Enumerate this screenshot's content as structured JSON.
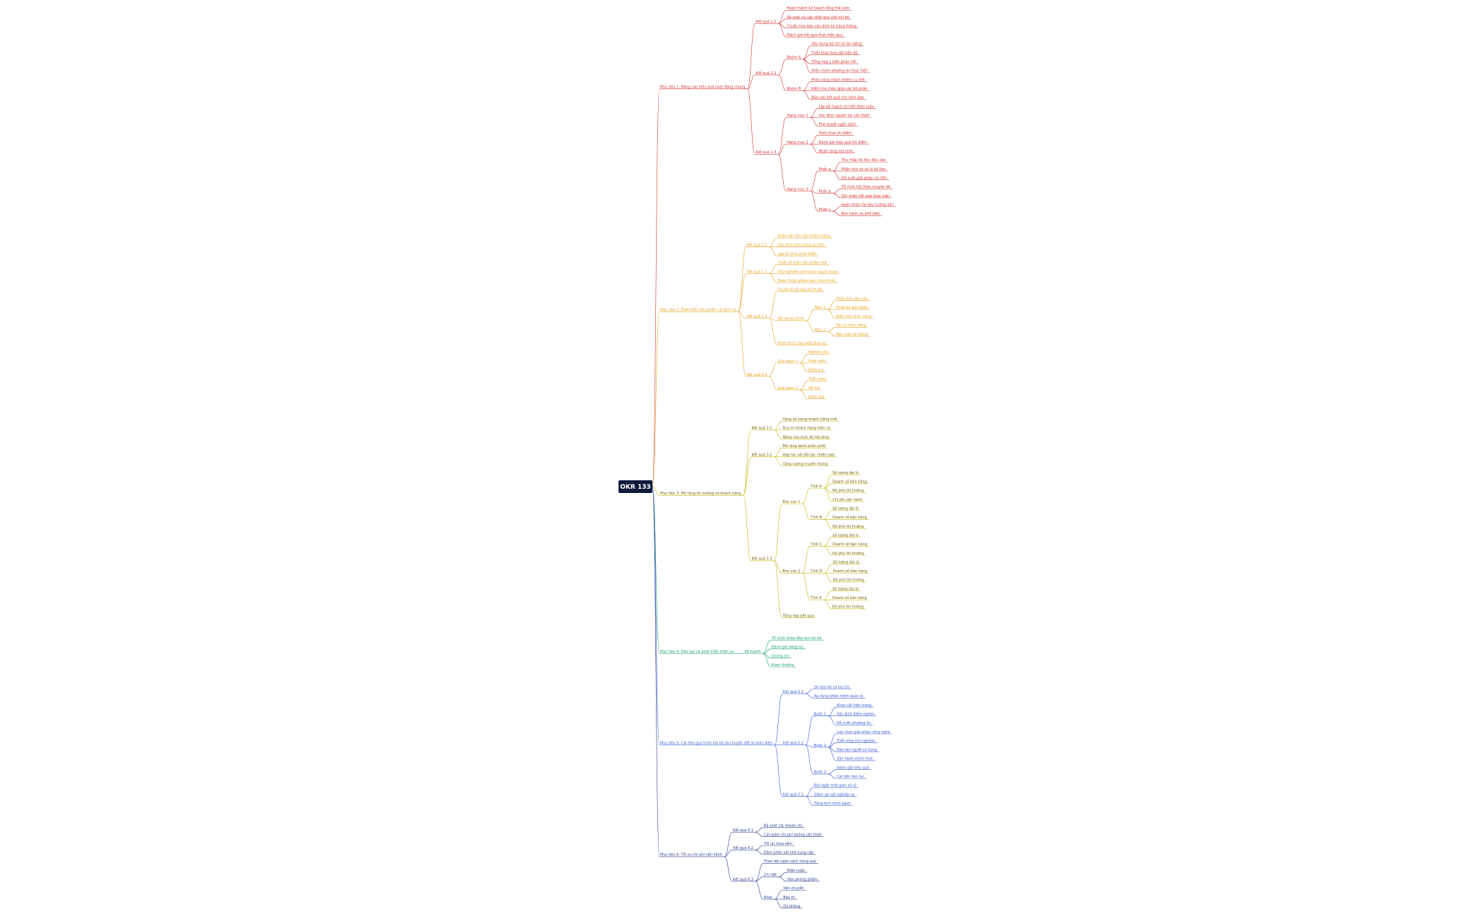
{
  "root": {
    "label": "OKR 133"
  },
  "branches": [
    {
      "label": "Mục tiêu 1: Nâng cao hiệu quả hoạt động chung",
      "color": "#d0312d",
      "children": [
        {
          "label": "Kết quả 1.1",
          "children": [
            {
              "label": "Hoàn thành kế hoạch tổng thể năm"
            },
            {
              "label": "Rà soát và cập nhật quy chế nội bộ"
            },
            {
              "label": "Chuẩn hóa báo cáo định kỳ hàng tháng"
            },
            {
              "label": "Đánh giá kết quả thực hiện quý"
            }
          ]
        },
        {
          "label": "Kết quả 1.2",
          "children": [
            {
              "label": "Nhóm A",
              "children": [
                {
                  "label": "Xây dựng bộ chỉ số đo lường"
                },
                {
                  "label": "Triển khai theo dõi tiến độ"
                },
                {
                  "label": "Tổng hợp ý kiến phản hồi"
                },
                {
                  "label": "Điều chỉnh phương án thực hiện"
                }
              ]
            },
            {
              "label": "Nhóm B",
              "children": [
                {
                  "label": "Phân công trách nhiệm cụ thể"
                },
                {
                  "label": "Kiểm tra chéo giữa các bộ phận"
                },
                {
                  "label": "Báo cáo kết quả cho lãnh đạo"
                }
              ]
            }
          ]
        },
        {
          "label": "Kết quả 1.3",
          "children": [
            {
              "label": "Hạng mục 1",
              "children": [
                {
                  "label": "Lập kế hoạch chi tiết theo tuần"
                },
                {
                  "label": "Xác định nguồn lực cần thiết"
                },
                {
                  "label": "Phê duyệt ngân sách"
                }
              ]
            },
            {
              "label": "Hạng mục 2",
              "children": [
                {
                  "label": "Triển khai thí điểm"
                },
                {
                  "label": "Đánh giá hiệu quả thí điểm"
                },
                {
                  "label": "Nhân rộng mô hình"
                }
              ]
            },
            {
              "label": "Hạng mục 3",
              "children": [
                {
                  "label": "Phần a",
                  "children": [
                    {
                      "label": "Thu thập dữ liệu đầu vào"
                    },
                    {
                      "label": "Phân tích và xử lý số liệu"
                    },
                    {
                      "label": "Đề xuất giải pháp cải tiến"
                    }
                  ]
                },
                {
                  "label": "Phần b",
                  "children": [
                    {
                      "label": "Tổ chức hội thảo chuyên đề"
                    },
                    {
                      "label": "Ghi nhận kết quả thảo luận"
                    }
                  ]
                },
                {
                  "label": "Phần c",
                  "children": [
                    {
                      "label": "Hoàn thiện tài liệu hướng dẫn"
                    },
                    {
                      "label": "Ban hành và phổ biến"
                    }
                  ]
                }
              ]
            }
          ]
        }
      ]
    },
    {
      "label": "Mục tiêu 2: Phát triển sản phẩm và dịch vụ",
      "color": "#e8a11a",
      "children": [
        {
          "label": "Kết quả 2.1",
          "children": [
            {
              "label": "Khảo sát nhu cầu khách hàng"
            },
            {
              "label": "Xác định tính năng ưu tiên"
            },
            {
              "label": "Lập lộ trình phát triển"
            }
          ]
        },
        {
          "label": "Kết quả 2.2",
          "children": [
            {
              "label": "Thiết kế mẫu sản phẩm mới"
            },
            {
              "label": "Thử nghiệm với nhóm người dùng"
            },
            {
              "label": "Hoàn thiện phiên bản chính thức"
            }
          ]
        },
        {
          "label": "Kết quả 2.3",
          "children": [
            {
              "label": "Chuẩn bị tài liệu kỹ thuật"
            },
            {
              "label": "Nội dung chính",
              "children": [
                {
                  "label": "Mục 1",
                  "children": [
                    {
                      "label": "Phân tích yêu cầu"
                    },
                    {
                      "label": "Thiết kế giải pháp"
                    },
                    {
                      "label": "Kiểm thử chức năng"
                    }
                  ]
                },
                {
                  "label": "Mục 2",
                  "children": [
                    {
                      "label": "Tối ưu hiệu năng"
                    },
                    {
                      "label": "Bảo mật hệ thống"
                    }
                  ]
                }
              ]
            },
            {
              "label": "Phát hành cập nhật định kỳ"
            }
          ]
        },
        {
          "label": "Kết quả 2.4",
          "children": [
            {
              "label": "Giai đoạn 1",
              "children": [
                {
                  "label": "Nghiên cứu"
                },
                {
                  "label": "Phát triển"
                },
                {
                  "label": "Kiểm tra"
                }
              ]
            },
            {
              "label": "Giai đoạn 2",
              "children": [
                {
                  "label": "Triển khai"
                },
                {
                  "label": "Hỗ trợ"
                },
                {
                  "label": "Đánh giá"
                }
              ]
            }
          ]
        }
      ]
    },
    {
      "label": "Mục tiêu 3: Mở rộng thị trường và khách hàng",
      "color": "#c8b400",
      "children": [
        {
          "label": "Kết quả 3.1",
          "children": [
            {
              "label": "Tăng số lượng khách hàng mới"
            },
            {
              "label": "Duy trì khách hàng hiện có"
            },
            {
              "label": "Nâng cao mức độ hài lòng"
            }
          ]
        },
        {
          "label": "Kết quả 3.2",
          "children": [
            {
              "label": "Mở rộng kênh phân phối"
            },
            {
              "label": "Hợp tác với đối tác chiến lược"
            },
            {
              "label": "Tăng cường truyền thông"
            }
          ]
        },
        {
          "label": "Kết quả 3.3",
          "children": [
            {
              "label": "Khu vực 1",
              "children": [
                {
                  "label": "Tỉnh A",
                  "children": [
                    {
                      "label": "Số lượng đại lý"
                    },
                    {
                      "label": "Doanh số bán hàng"
                    },
                    {
                      "label": "Độ phủ thị trường"
                    },
                    {
                      "label": "Chi phí vận hành"
                    }
                  ]
                },
                {
                  "label": "Tỉnh B",
                  "children": [
                    {
                      "label": "Số lượng đại lý"
                    },
                    {
                      "label": "Doanh số bán hàng"
                    },
                    {
                      "label": "Độ phủ thị trường"
                    }
                  ]
                }
              ]
            },
            {
              "label": "Khu vực 2",
              "children": [
                {
                  "label": "Tỉnh C",
                  "children": [
                    {
                      "label": "Số lượng đại lý"
                    },
                    {
                      "label": "Doanh số bán hàng"
                    },
                    {
                      "label": "Độ phủ thị trường"
                    }
                  ]
                },
                {
                  "label": "Tỉnh D",
                  "children": [
                    {
                      "label": "Số lượng đại lý"
                    },
                    {
                      "label": "Doanh số bán hàng"
                    },
                    {
                      "label": "Độ phủ thị trường"
                    }
                  ]
                },
                {
                  "label": "Tỉnh E",
                  "children": [
                    {
                      "label": "Số lượng đại lý"
                    },
                    {
                      "label": "Doanh số bán hàng"
                    },
                    {
                      "label": "Độ phủ thị trường"
                    }
                  ]
                }
              ]
            },
            {
              "label": "Tổng hợp kết quả"
            }
          ]
        }
      ]
    },
    {
      "label": "Mục tiêu 4: Đào tạo và phát triển nhân sự",
      "color": "#1b9e77",
      "children": [
        {
          "label": "Kế hoạch",
          "children": [
            {
              "label": "Tổ chức khóa đào tạo nội bộ"
            },
            {
              "label": "Đánh giá năng lực"
            },
            {
              "label": "Chứng chỉ"
            },
            {
              "label": "Khen thưởng"
            }
          ]
        }
      ]
    },
    {
      "label": "Mục tiêu 5: Cải tiến quy trình nội bộ và chuyển đổi số toàn diện",
      "color": "#3557d6",
      "children": [
        {
          "label": "Kết quả 5.1",
          "children": [
            {
              "label": "Số hóa hồ sơ lưu trữ"
            },
            {
              "label": "Áp dụng phần mềm quản lý"
            }
          ]
        },
        {
          "label": "Kết quả 5.2",
          "children": [
            {
              "label": "Bước 1",
              "children": [
                {
                  "label": "Khảo sát hiện trạng"
                },
                {
                  "label": "Xác định điểm nghẽn"
                },
                {
                  "label": "Đề xuất phương án"
                }
              ]
            },
            {
              "label": "Bước 2",
              "children": [
                {
                  "label": "Lựa chọn giải pháp công nghệ"
                },
                {
                  "label": "Triển khai thử nghiệm"
                },
                {
                  "label": "Đào tạo người sử dụng"
                },
                {
                  "label": "Vận hành chính thức"
                }
              ]
            },
            {
              "label": "Bước 3",
              "children": [
                {
                  "label": "Đánh giá hiệu quả"
                },
                {
                  "label": "Cải tiến liên tục"
                }
              ]
            }
          ]
        },
        {
          "label": "Kết quả 5.3",
          "children": [
            {
              "label": "Rút ngắn thời gian xử lý"
            },
            {
              "label": "Giảm sai sót nghiệp vụ"
            },
            {
              "label": "Tăng tính minh bạch"
            }
          ]
        }
      ]
    },
    {
      "label": "Mục tiêu 6: Tối ưu chi phí vận hành",
      "color": "#2b3a8c",
      "children": [
        {
          "label": "Kết quả 6.1",
          "children": [
            {
              "label": "Rà soát các khoản chi"
            },
            {
              "label": "Cắt giảm chi phí không cần thiết"
            }
          ]
        },
        {
          "label": "Kết quả 6.2",
          "children": [
            {
              "label": "Tối ưu mua sắm"
            },
            {
              "label": "Đàm phán với nhà cung cấp"
            }
          ]
        },
        {
          "label": "Kết quả 6.3",
          "children": [
            {
              "label": "Theo dõi ngân sách hàng quý"
            },
            {
              "label": "Chi tiết",
              "children": [
                {
                  "label": "Điện nước"
                },
                {
                  "label": "Văn phòng phẩm"
                }
              ]
            },
            {
              "label": "Khác",
              "children": [
                {
                  "label": "Vận chuyển"
                },
                {
                  "label": "Bảo trì"
                },
                {
                  "label": "Dự phòng"
                }
              ]
            }
          ]
        }
      ]
    }
  ]
}
